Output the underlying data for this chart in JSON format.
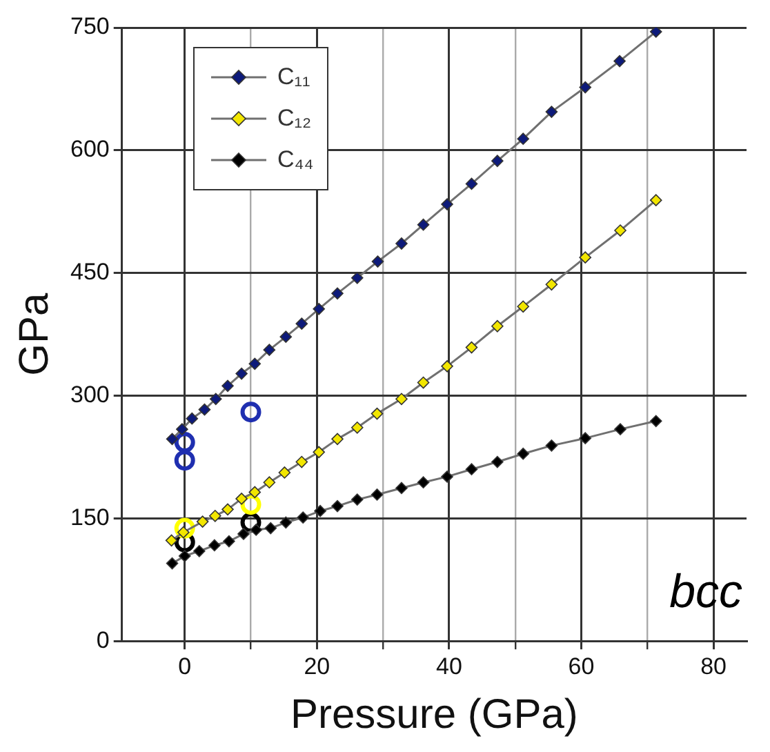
{
  "chart_data": {
    "type": "line",
    "xlabel": "Pressure (GPa)",
    "ylabel": "GPa",
    "annotations": [
      "bcc"
    ],
    "xlim": [
      -9.5,
      85
    ],
    "ylim": [
      0,
      750
    ],
    "xticks": [
      0,
      {
        "value": 10,
        "label": null
      },
      20,
      {
        "value": 30,
        "label": null
      },
      40,
      {
        "value": 50,
        "label": null
      },
      60,
      {
        "value": 70,
        "label": null
      },
      80
    ],
    "yticks": [
      0,
      150,
      300,
      450,
      600,
      750
    ],
    "grid": true,
    "legend": "top left",
    "marker": "diamond",
    "series": [
      {
        "name": "C₁₁",
        "color": "#0d1a7a",
        "x": [
          -1.9,
          -0.4,
          1.1,
          3.0,
          4.7,
          6.5,
          8.6,
          10.6,
          12.8,
          15.3,
          17.7,
          20.3,
          23.1,
          26.1,
          29.2,
          32.8,
          36.1,
          39.7,
          43.4,
          47.3,
          51.2,
          55.5,
          60.6,
          65.8,
          71.3
        ],
        "values": [
          247,
          259,
          272,
          283,
          296,
          312,
          327,
          339,
          356,
          372,
          388,
          406,
          425,
          444,
          464,
          486,
          509,
          534,
          559,
          587,
          614,
          647,
          677,
          709,
          745
        ]
      },
      {
        "name": "C₁₂",
        "color": "#f2e600",
        "x": [
          -2,
          -0.2,
          2.7,
          4.6,
          6.5,
          8.6,
          10.6,
          12.8,
          15.1,
          17.7,
          20.3,
          23.1,
          26.1,
          29.1,
          32.8,
          36.1,
          39.7,
          43.4,
          47.3,
          51.2,
          55.5,
          60.6,
          65.9,
          71.3
        ],
        "values": [
          123,
          133,
          146,
          153,
          161,
          174,
          182,
          194,
          206,
          219,
          231,
          247,
          261,
          278,
          296,
          316,
          336,
          359,
          385,
          409,
          436,
          469,
          502,
          539
        ]
      },
      {
        "name": "C₄₄",
        "color": "#000000",
        "x": [
          -1.9,
          0,
          2.2,
          4.5,
          6.7,
          8.9,
          10.8,
          13,
          15.3,
          17.9,
          20.5,
          23.1,
          26.1,
          29.1,
          32.8,
          36.1,
          39.7,
          43.4,
          47.3,
          51.2,
          55.5,
          60.6,
          65.9,
          71.3
        ],
        "values": [
          95,
          104,
          110,
          117,
          122,
          131,
          136,
          138,
          145,
          151,
          159,
          165,
          173,
          179,
          187,
          194,
          201,
          210,
          219,
          229,
          239,
          248,
          259,
          269
        ]
      },
      {
        "type": "scatter",
        "marker": "circle",
        "color": "#1f2fb0",
        "x": [
          0,
          0,
          10
        ],
        "values": [
          243,
          221,
          280
        ]
      },
      {
        "type": "scatter",
        "marker": "circle",
        "color": "#ffff00",
        "x": [
          0,
          10
        ],
        "values": [
          138,
          167
        ]
      },
      {
        "type": "scatter",
        "marker": "circle",
        "color": "#000000",
        "x": [
          0,
          10
        ],
        "values": [
          121,
          145
        ]
      }
    ]
  }
}
